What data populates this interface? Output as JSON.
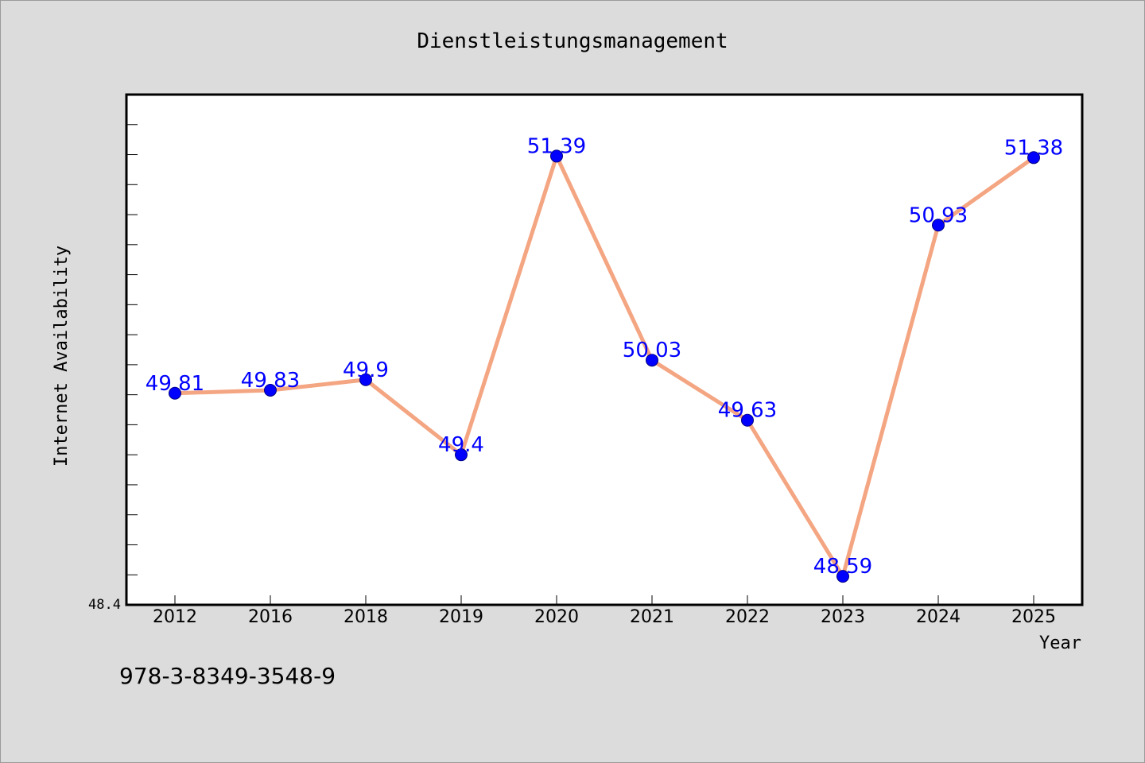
{
  "chart_data": {
    "type": "line",
    "title": "Dienstleistungsmanagement",
    "xlabel": "Year",
    "ylabel": "Internet Availability",
    "categories": [
      "2012",
      "2016",
      "2018",
      "2019",
      "2020",
      "2021",
      "2022",
      "2023",
      "2024",
      "2025"
    ],
    "series": [
      {
        "values": [
          49.81,
          49.83,
          49.9,
          49.4,
          51.39,
          50.03,
          49.63,
          48.59,
          50.93,
          51.38
        ],
        "data_labels": [
          "49.81",
          "49.83",
          "49.9",
          "49.4",
          "51.39",
          "50.03",
          "49.63",
          "48.59",
          "50.93",
          "51.38"
        ],
        "line_color": "#f4a582",
        "marker_color": "#0000ff"
      }
    ],
    "ylim": [
      48.4,
      51.8
    ],
    "y_min_label": "48.4",
    "grid": false,
    "legend": "none"
  },
  "footnote": "978-3-8349-3548-9"
}
